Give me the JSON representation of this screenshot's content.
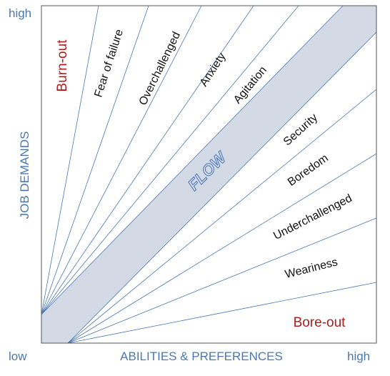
{
  "axes": {
    "y_title": "JOB DEMANDS",
    "x_title": "ABILITIES & PREFERENCES",
    "y_high": "high",
    "x_low": "low",
    "x_high": "high"
  },
  "zones": {
    "flow": "FLOW",
    "upper": [
      "Burn-out",
      "Fear of failure",
      "Overchallenged",
      "Anxiety",
      "Agitation"
    ],
    "lower": [
      "Security",
      "Boredom",
      "Underchallenged",
      "Weariness",
      "Bore-out"
    ]
  }
}
